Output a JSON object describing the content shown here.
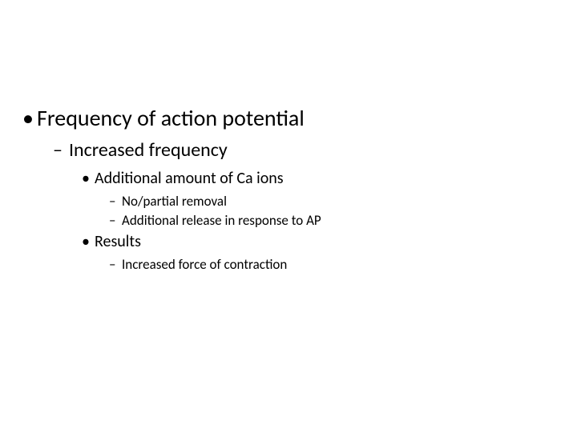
{
  "background_color": "#ffffff",
  "text_color": "#000000",
  "font_family": "Calibri",
  "items": {
    "l1_1": "Frequency of action potential",
    "l2_1": "Increased frequency",
    "l3_1": "Additional amount of Ca ions",
    "l4_1": "No/partial removal",
    "l4_2": "Additional release in response to AP",
    "l3_2": "Results",
    "l4_3": "Increased force of contraction"
  },
  "bullets": {
    "disc": "•",
    "dash": "–"
  },
  "font_sizes": {
    "level1": 28,
    "level2": 24,
    "level3": 20,
    "level4": 17
  }
}
